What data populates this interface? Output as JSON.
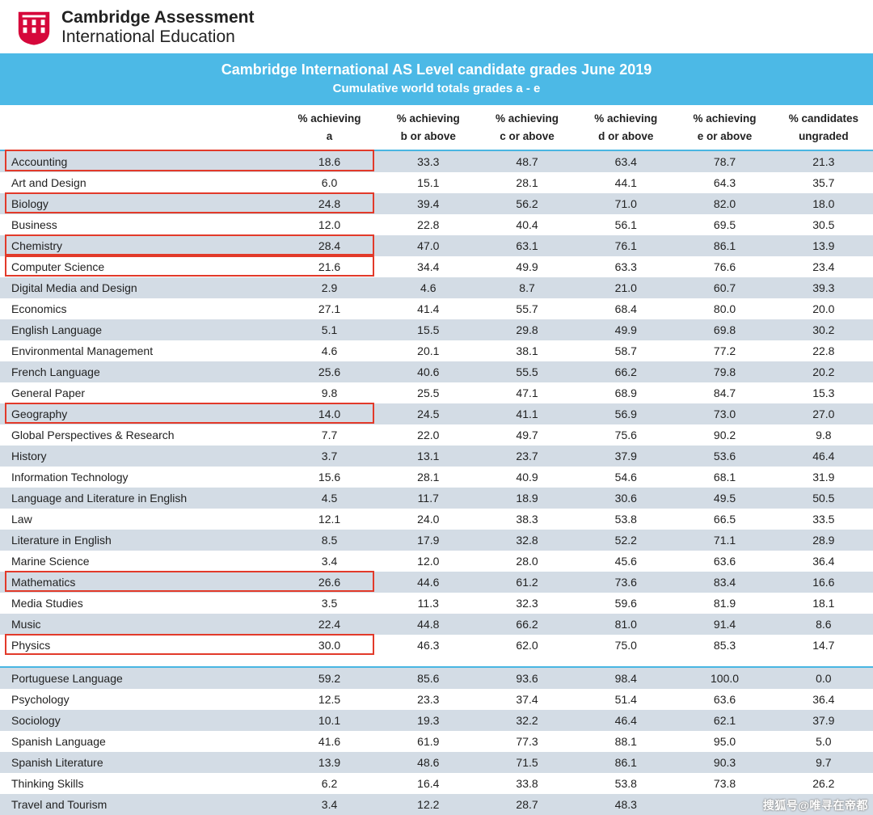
{
  "brand": {
    "line1": "Cambridge Assessment",
    "line2": "International Education",
    "logo_color": "#d6083b"
  },
  "title": {
    "main": "Cambridge International AS Level candidate grades June 2019",
    "sub": "Cumulative world totals grades a - e",
    "bg_color": "#4cb9e6",
    "text_color": "#ffffff"
  },
  "table": {
    "columns": [
      "",
      "% achieving a",
      "% achieving b or above",
      "% achieving c or above",
      "% achieving d or above",
      "% achieving e or above",
      "% candidates ungraded"
    ],
    "stripe_even_bg": "#d3dce5",
    "stripe_odd_bg": "#ffffff",
    "section_rule_color": "#49b6e2",
    "highlight_border_color": "#e23a2a",
    "section1": [
      {
        "subject": "Accounting",
        "a": "18.6",
        "b": "33.3",
        "c": "48.7",
        "d": "63.4",
        "e": "78.7",
        "u": "21.3",
        "hl": true
      },
      {
        "subject": "Art and Design",
        "a": "6.0",
        "b": "15.1",
        "c": "28.1",
        "d": "44.1",
        "e": "64.3",
        "u": "35.7"
      },
      {
        "subject": "Biology",
        "a": "24.8",
        "b": "39.4",
        "c": "56.2",
        "d": "71.0",
        "e": "82.0",
        "u": "18.0",
        "hl": true
      },
      {
        "subject": "Business",
        "a": "12.0",
        "b": "22.8",
        "c": "40.4",
        "d": "56.1",
        "e": "69.5",
        "u": "30.5"
      },
      {
        "subject": "Chemistry",
        "a": "28.4",
        "b": "47.0",
        "c": "63.1",
        "d": "76.1",
        "e": "86.1",
        "u": "13.9",
        "hl": true
      },
      {
        "subject": "Computer Science",
        "a": "21.6",
        "b": "34.4",
        "c": "49.9",
        "d": "63.3",
        "e": "76.6",
        "u": "23.4",
        "hl": true
      },
      {
        "subject": "Digital Media and Design",
        "a": "2.9",
        "b": "4.6",
        "c": "8.7",
        "d": "21.0",
        "e": "60.7",
        "u": "39.3"
      },
      {
        "subject": "Economics",
        "a": "27.1",
        "b": "41.4",
        "c": "55.7",
        "d": "68.4",
        "e": "80.0",
        "u": "20.0"
      },
      {
        "subject": "English Language",
        "a": "5.1",
        "b": "15.5",
        "c": "29.8",
        "d": "49.9",
        "e": "69.8",
        "u": "30.2"
      },
      {
        "subject": "Environmental Management",
        "a": "4.6",
        "b": "20.1",
        "c": "38.1",
        "d": "58.7",
        "e": "77.2",
        "u": "22.8"
      },
      {
        "subject": "French Language",
        "a": "25.6",
        "b": "40.6",
        "c": "55.5",
        "d": "66.2",
        "e": "79.8",
        "u": "20.2"
      },
      {
        "subject": "General Paper",
        "a": "9.8",
        "b": "25.5",
        "c": "47.1",
        "d": "68.9",
        "e": "84.7",
        "u": "15.3"
      },
      {
        "subject": "Geography",
        "a": "14.0",
        "b": "24.5",
        "c": "41.1",
        "d": "56.9",
        "e": "73.0",
        "u": "27.0",
        "hl": true
      },
      {
        "subject": "Global Perspectives & Research",
        "a": "7.7",
        "b": "22.0",
        "c": "49.7",
        "d": "75.6",
        "e": "90.2",
        "u": "9.8"
      },
      {
        "subject": "History",
        "a": "3.7",
        "b": "13.1",
        "c": "23.7",
        "d": "37.9",
        "e": "53.6",
        "u": "46.4"
      },
      {
        "subject": "Information Technology",
        "a": "15.6",
        "b": "28.1",
        "c": "40.9",
        "d": "54.6",
        "e": "68.1",
        "u": "31.9"
      },
      {
        "subject": "Language and Literature in English",
        "a": "4.5",
        "b": "11.7",
        "c": "18.9",
        "d": "30.6",
        "e": "49.5",
        "u": "50.5"
      },
      {
        "subject": "Law",
        "a": "12.1",
        "b": "24.0",
        "c": "38.3",
        "d": "53.8",
        "e": "66.5",
        "u": "33.5"
      },
      {
        "subject": "Literature in English",
        "a": "8.5",
        "b": "17.9",
        "c": "32.8",
        "d": "52.2",
        "e": "71.1",
        "u": "28.9"
      },
      {
        "subject": "Marine Science",
        "a": "3.4",
        "b": "12.0",
        "c": "28.0",
        "d": "45.6",
        "e": "63.6",
        "u": "36.4"
      },
      {
        "subject": "Mathematics",
        "a": "26.6",
        "b": "44.6",
        "c": "61.2",
        "d": "73.6",
        "e": "83.4",
        "u": "16.6",
        "hl": true
      },
      {
        "subject": "Media Studies",
        "a": "3.5",
        "b": "11.3",
        "c": "32.3",
        "d": "59.6",
        "e": "81.9",
        "u": "18.1"
      },
      {
        "subject": "Music",
        "a": "22.4",
        "b": "44.8",
        "c": "66.2",
        "d": "81.0",
        "e": "91.4",
        "u": "8.6"
      },
      {
        "subject": "Physics",
        "a": "30.0",
        "b": "46.3",
        "c": "62.0",
        "d": "75.0",
        "e": "85.3",
        "u": "14.7",
        "hl": true
      }
    ],
    "section2": [
      {
        "subject": "Portuguese Language",
        "a": "59.2",
        "b": "85.6",
        "c": "93.6",
        "d": "98.4",
        "e": "100.0",
        "u": "0.0"
      },
      {
        "subject": "Psychology",
        "a": "12.5",
        "b": "23.3",
        "c": "37.4",
        "d": "51.4",
        "e": "63.6",
        "u": "36.4"
      },
      {
        "subject": "Sociology",
        "a": "10.1",
        "b": "19.3",
        "c": "32.2",
        "d": "46.4",
        "e": "62.1",
        "u": "37.9"
      },
      {
        "subject": "Spanish Language",
        "a": "41.6",
        "b": "61.9",
        "c": "77.3",
        "d": "88.1",
        "e": "95.0",
        "u": "5.0"
      },
      {
        "subject": "Spanish Literature",
        "a": "13.9",
        "b": "48.6",
        "c": "71.5",
        "d": "86.1",
        "e": "90.3",
        "u": "9.7"
      },
      {
        "subject": "Thinking Skills",
        "a": "6.2",
        "b": "16.4",
        "c": "33.8",
        "d": "53.8",
        "e": "73.8",
        "u": "26.2"
      },
      {
        "subject": "Travel and Tourism",
        "a": "3.4",
        "b": "12.2",
        "c": "28.7",
        "d": "48.3",
        "e": "",
        "u": ""
      }
    ]
  },
  "watermark": "搜狐号@唯寻在帝都"
}
